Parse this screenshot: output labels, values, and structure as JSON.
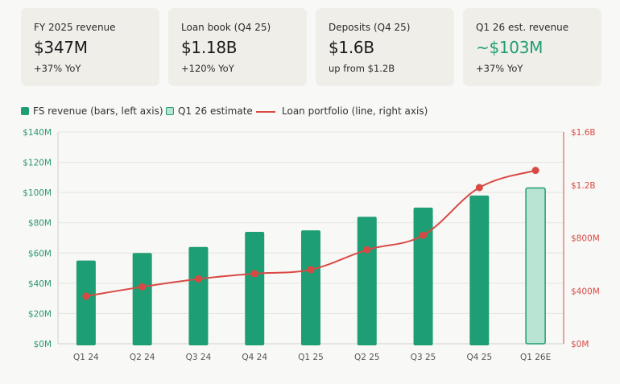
{
  "cards": [
    {
      "label": "FY 2025 revenue",
      "value": "$347M",
      "sub": "+37% YoY",
      "accent": false
    },
    {
      "label": "Loan book (Q4 25)",
      "value": "$1.18B",
      "sub": "+120% YoY",
      "accent": false
    },
    {
      "label": "Deposits (Q4 25)",
      "value": "$1.6B",
      "sub": "up from $1.2B",
      "accent": false
    },
    {
      "label": "Q1 26 est. revenue",
      "value": "~$103M",
      "sub": "+37% YoY",
      "accent": true
    }
  ],
  "legend": {
    "bars": "FS revenue (bars, left axis)",
    "estimate": "Q1 26 estimate",
    "line": "Loan portfolio (line, right axis)"
  },
  "colors": {
    "bar": "#1e9e74",
    "estimate_fill": "#b9e4d3",
    "line": "#d94a45",
    "accent": "#1e9e74"
  },
  "chart_data": {
    "type": "bar",
    "categories": [
      "Q1 24",
      "Q2 24",
      "Q3 24",
      "Q4 24",
      "Q1 25",
      "Q2 25",
      "Q3 25",
      "Q4 25",
      "Q1 26E"
    ],
    "series": [
      {
        "name": "FS revenue (bars, left axis)",
        "axis": "left",
        "type": "bar",
        "values": [
          55,
          60,
          64,
          74,
          75,
          84,
          90,
          98,
          103
        ],
        "estimated": [
          false,
          false,
          false,
          false,
          false,
          false,
          false,
          false,
          true
        ]
      },
      {
        "name": "Loan portfolio (line, right axis)",
        "axis": "right",
        "type": "line",
        "values": [
          0.36,
          0.43,
          0.49,
          0.53,
          0.56,
          0.71,
          0.82,
          1.18,
          1.31
        ]
      }
    ],
    "left_axis": {
      "ylim": [
        0,
        140
      ],
      "ticks": [
        0,
        20,
        40,
        60,
        80,
        100,
        120,
        140
      ],
      "tick_labels": [
        "$0M",
        "$20M",
        "$40M",
        "$60M",
        "$80M",
        "$100M",
        "$120M",
        "$140M"
      ]
    },
    "right_axis": {
      "ylim": [
        0,
        1.6
      ],
      "ticks": [
        0,
        0.4,
        0.8,
        1.2,
        1.6
      ],
      "tick_labels": [
        "$0M",
        "$400M",
        "$800M",
        "$1.2B",
        "$1.6B"
      ]
    },
    "grid": true,
    "legend_position": "top-left"
  }
}
